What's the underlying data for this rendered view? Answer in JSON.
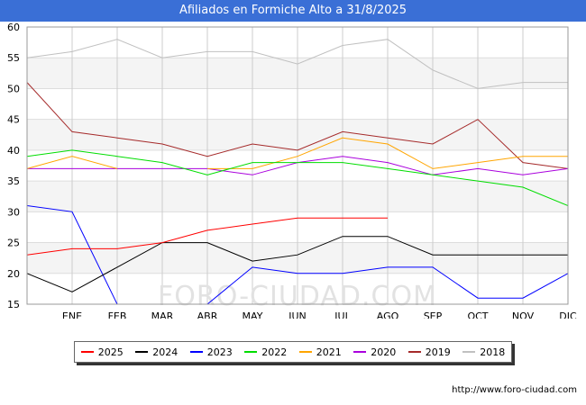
{
  "header": {
    "title": "Afiliados en Formiche Alto a 31/8/2025"
  },
  "footer": {
    "url": "http://www.foro-ciudad.com"
  },
  "watermark": "FORO-CIUDAD.COM",
  "chart_data": {
    "type": "line",
    "title": "Afiliados en Formiche Alto a 31/8/2025",
    "categories": [
      "",
      "ENE",
      "FEB",
      "MAR",
      "ABR",
      "MAY",
      "JUN",
      "JUL",
      "AGO",
      "SEP",
      "OCT",
      "NOV",
      "DIC"
    ],
    "ylim": [
      15,
      60
    ],
    "yticks": [
      15,
      20,
      25,
      30,
      35,
      40,
      45,
      50,
      55,
      60
    ],
    "grid": true,
    "legend_position": "bottom",
    "series": [
      {
        "name": "2025",
        "color": "#ff0000",
        "values": [
          23,
          24,
          24,
          25,
          27,
          28,
          29,
          29,
          29,
          null,
          null,
          null,
          null
        ]
      },
      {
        "name": "2024",
        "color": "#000000",
        "values": [
          20,
          17,
          21,
          25,
          25,
          22,
          23,
          26,
          26,
          23,
          23,
          23,
          23
        ]
      },
      {
        "name": "2023",
        "color": "#0000ff",
        "values": [
          31,
          30,
          15,
          null,
          15,
          21,
          20,
          20,
          21,
          21,
          16,
          16,
          20
        ]
      },
      {
        "name": "2022",
        "color": "#00dd00",
        "values": [
          39,
          40,
          39,
          38,
          36,
          38,
          38,
          38,
          37,
          36,
          35,
          34,
          31
        ]
      },
      {
        "name": "2021",
        "color": "#ffa500",
        "values": [
          37,
          39,
          37,
          null,
          37,
          37,
          39,
          42,
          41,
          37,
          38,
          39,
          39
        ]
      },
      {
        "name": "2020",
        "color": "#aa00dd",
        "values": [
          37,
          37,
          37,
          37,
          37,
          36,
          38,
          39,
          38,
          36,
          37,
          36,
          37
        ]
      },
      {
        "name": "2019",
        "color": "#a52a2a",
        "values": [
          51,
          43,
          42,
          41,
          39,
          41,
          40,
          43,
          42,
          41,
          45,
          38,
          37
        ]
      },
      {
        "name": "2018",
        "color": "#c0c0c0",
        "values": [
          55,
          56,
          58,
          55,
          56,
          56,
          54,
          57,
          58,
          53,
          50,
          51,
          51
        ]
      }
    ]
  }
}
